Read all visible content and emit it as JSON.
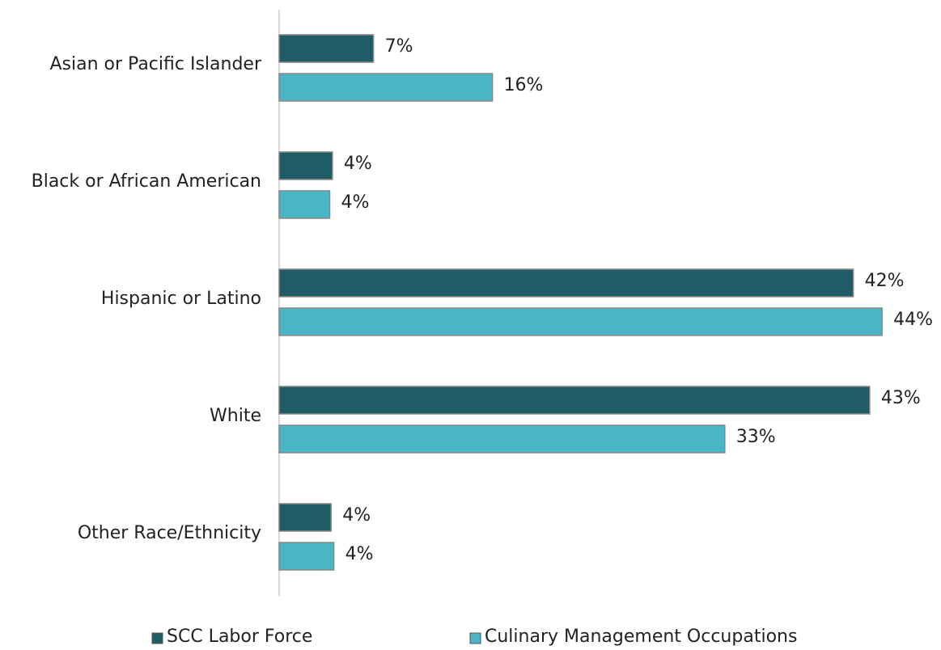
{
  "chart_data": {
    "type": "hbar",
    "categories": [
      "Asian or Pacific Islander",
      "Black or African American",
      "Hispanic or Latino",
      "White",
      "Other Race/Ethnicity"
    ],
    "series": [
      {
        "name": "SCC Labor Force",
        "color": "#1f5c66",
        "values": [
          6.9,
          3.9,
          42.0,
          43.2,
          3.8
        ],
        "value_labels": [
          "7%",
          "4%",
          "42%",
          "43%",
          "4%"
        ]
      },
      {
        "name": "Culinary Management Occupations",
        "color": "#4ab5c4",
        "values": [
          15.6,
          3.7,
          44.1,
          32.6,
          4.0
        ],
        "value_labels": [
          "16%",
          "4%",
          "44%",
          "33%",
          "4%"
        ]
      }
    ],
    "xlim": [
      0,
      48
    ],
    "grid": false
  }
}
